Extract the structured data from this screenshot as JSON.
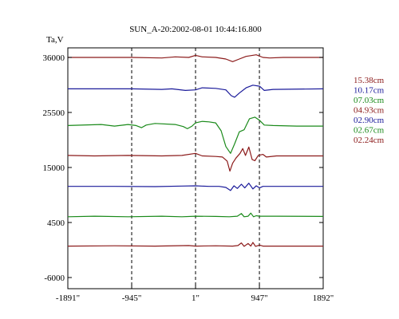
{
  "chart_data": {
    "type": "line",
    "title": "SUN_A-20:2002-08-01 10:44:16.800",
    "ylabel": "Ta,V",
    "xlabel": "",
    "xlim": [
      -1891,
      1892
    ],
    "ylim": [
      -8000,
      38000
    ],
    "x_ticks": [
      {
        "value": -1891,
        "label": "-1891\""
      },
      {
        "value": -945,
        "label": "-945\""
      },
      {
        "value": 1,
        "label": "1\""
      },
      {
        "value": 947,
        "label": "947\""
      },
      {
        "value": 1892,
        "label": "1892\""
      }
    ],
    "y_ticks": [
      {
        "value": 36000,
        "label": "36000"
      },
      {
        "value": 25500,
        "label": "25500"
      },
      {
        "value": 15000,
        "label": "15000"
      },
      {
        "value": 4500,
        "label": "4500"
      },
      {
        "value": -6000,
        "label": "-6000"
      }
    ],
    "vertical_dashed_lines_at": [
      -945,
      1,
      947
    ],
    "grid": false,
    "legend_position": "right",
    "colors": {
      "dark_red": "#8b1a1a",
      "navy": "#1a1a9a",
      "green": "#1a8a1a"
    },
    "series": [
      {
        "name": "15.38cm",
        "color": "#8b1a1a",
        "points": [
          [
            -1891,
            36000
          ],
          [
            -945,
            36000
          ],
          [
            -500,
            35900
          ],
          [
            -300,
            36100
          ],
          [
            -100,
            36000
          ],
          [
            0,
            36400
          ],
          [
            100,
            36100
          ],
          [
            300,
            36000
          ],
          [
            450,
            35700
          ],
          [
            550,
            35200
          ],
          [
            650,
            35700
          ],
          [
            750,
            36200
          ],
          [
            900,
            36500
          ],
          [
            1000,
            36000
          ],
          [
            1100,
            35900
          ],
          [
            1300,
            36000
          ],
          [
            1892,
            36000
          ]
        ]
      },
      {
        "name": "10.17cm",
        "color": "#1a1a9a",
        "points": [
          [
            -1891,
            30000
          ],
          [
            -945,
            30000
          ],
          [
            -500,
            29900
          ],
          [
            -350,
            30000
          ],
          [
            -150,
            29700
          ],
          [
            0,
            29800
          ],
          [
            100,
            30200
          ],
          [
            300,
            30100
          ],
          [
            450,
            29800
          ],
          [
            530,
            28700
          ],
          [
            580,
            28400
          ],
          [
            650,
            29200
          ],
          [
            750,
            30200
          ],
          [
            850,
            30700
          ],
          [
            950,
            30500
          ],
          [
            1020,
            29700
          ],
          [
            1150,
            29900
          ],
          [
            1892,
            30000
          ]
        ]
      },
      {
        "name": "07.03cm",
        "color": "#1a8a1a",
        "points": [
          [
            -1891,
            23000
          ],
          [
            -1400,
            23200
          ],
          [
            -1200,
            22900
          ],
          [
            -1000,
            23200
          ],
          [
            -880,
            23000
          ],
          [
            -800,
            22600
          ],
          [
            -730,
            23100
          ],
          [
            -600,
            23400
          ],
          [
            -300,
            23200
          ],
          [
            -180,
            22800
          ],
          [
            -120,
            22400
          ],
          [
            -50,
            22900
          ],
          [
            0,
            23500
          ],
          [
            100,
            23800
          ],
          [
            200,
            23700
          ],
          [
            300,
            23500
          ],
          [
            380,
            22000
          ],
          [
            450,
            19000
          ],
          [
            520,
            17700
          ],
          [
            580,
            19500
          ],
          [
            650,
            21800
          ],
          [
            720,
            22200
          ],
          [
            800,
            24300
          ],
          [
            880,
            24600
          ],
          [
            950,
            24000
          ],
          [
            1020,
            23100
          ],
          [
            1150,
            23000
          ],
          [
            1500,
            22900
          ],
          [
            1892,
            22900
          ]
        ]
      },
      {
        "name": "04.93cm",
        "color": "#8b1a1a",
        "points": [
          [
            -1891,
            17300
          ],
          [
            -1500,
            17200
          ],
          [
            -1000,
            17300
          ],
          [
            -500,
            17200
          ],
          [
            -200,
            17300
          ],
          [
            0,
            17700
          ],
          [
            100,
            17200
          ],
          [
            300,
            17100
          ],
          [
            400,
            17000
          ],
          [
            470,
            16200
          ],
          [
            510,
            14300
          ],
          [
            550,
            15800
          ],
          [
            600,
            16800
          ],
          [
            660,
            17700
          ],
          [
            700,
            18600
          ],
          [
            740,
            17300
          ],
          [
            790,
            18900
          ],
          [
            840,
            16500
          ],
          [
            880,
            16300
          ],
          [
            930,
            17300
          ],
          [
            1000,
            17500
          ],
          [
            1050,
            17000
          ],
          [
            1200,
            17200
          ],
          [
            1892,
            17200
          ]
        ]
      },
      {
        "name": "02.90cm",
        "color": "#1a1a9a",
        "points": [
          [
            -1891,
            11400
          ],
          [
            -1200,
            11400
          ],
          [
            -600,
            11350
          ],
          [
            -200,
            11450
          ],
          [
            0,
            11500
          ],
          [
            200,
            11400
          ],
          [
            350,
            11400
          ],
          [
            450,
            11200
          ],
          [
            520,
            10600
          ],
          [
            570,
            11500
          ],
          [
            620,
            11000
          ],
          [
            680,
            11800
          ],
          [
            730,
            11100
          ],
          [
            790,
            12000
          ],
          [
            850,
            10900
          ],
          [
            900,
            11500
          ],
          [
            950,
            11100
          ],
          [
            1000,
            11400
          ],
          [
            1200,
            11400
          ],
          [
            1892,
            11400
          ]
        ]
      },
      {
        "name": "02.67cm",
        "color": "#1a8a1a",
        "points": [
          [
            -1891,
            5600
          ],
          [
            -1500,
            5700
          ],
          [
            -1000,
            5600
          ],
          [
            -500,
            5700
          ],
          [
            -200,
            5600
          ],
          [
            0,
            5700
          ],
          [
            300,
            5650
          ],
          [
            500,
            5600
          ],
          [
            620,
            5700
          ],
          [
            680,
            6200
          ],
          [
            720,
            5600
          ],
          [
            780,
            5700
          ],
          [
            820,
            6300
          ],
          [
            860,
            5600
          ],
          [
            900,
            5800
          ],
          [
            950,
            5700
          ],
          [
            1200,
            5700
          ],
          [
            1892,
            5650
          ]
        ]
      },
      {
        "name": "02.24cm",
        "color": "#8b1a1a",
        "points": [
          [
            -1891,
            0
          ],
          [
            -1200,
            50
          ],
          [
            -600,
            0
          ],
          [
            -100,
            100
          ],
          [
            0,
            0
          ],
          [
            300,
            50
          ],
          [
            550,
            0
          ],
          [
            630,
            100
          ],
          [
            680,
            600
          ],
          [
            720,
            -50
          ],
          [
            780,
            500
          ],
          [
            820,
            0
          ],
          [
            850,
            700
          ],
          [
            890,
            -50
          ],
          [
            950,
            200
          ],
          [
            1000,
            0
          ],
          [
            1300,
            0
          ],
          [
            1892,
            0
          ]
        ]
      }
    ]
  }
}
